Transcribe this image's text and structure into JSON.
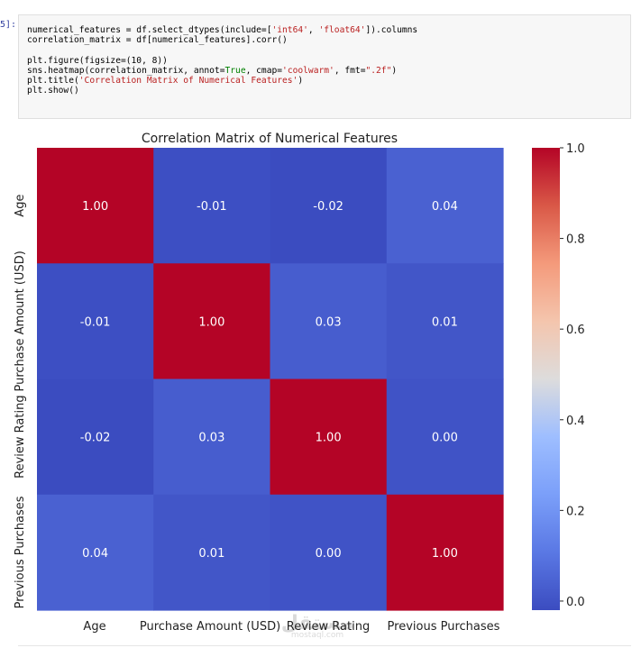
{
  "cell": {
    "prompt": "5]:",
    "code_lines": [
      [
        {
          "t": "numerical_features = df.select_dtypes(include=["
        },
        {
          "t": "'int64'",
          "c": "str"
        },
        {
          "t": ", "
        },
        {
          "t": "'float64'",
          "c": "str"
        },
        {
          "t": "]).columns"
        }
      ],
      [
        {
          "t": "correlation_matrix = df[numerical_features].corr()"
        }
      ],
      [
        {
          "t": ""
        }
      ],
      [
        {
          "t": "plt.figure(figsize=(10, 8))"
        }
      ],
      [
        {
          "t": "sns.heatmap(correlation_matrix, annot="
        },
        {
          "t": "True",
          "c": "kw"
        },
        {
          "t": ", cmap="
        },
        {
          "t": "'coolwarm'",
          "c": "str"
        },
        {
          "t": ", fmt="
        },
        {
          "t": "\".2f\"",
          "c": "str"
        },
        {
          "t": ")"
        }
      ],
      [
        {
          "t": "plt.title("
        },
        {
          "t": "'Correlation Matrix of Numerical Features'",
          "c": "str"
        },
        {
          "t": ")"
        }
      ],
      [
        {
          "t": "plt.show()"
        }
      ]
    ]
  },
  "chart_data": {
    "type": "heatmap",
    "title": "Correlation Matrix of Numerical Features",
    "row_labels": [
      "Age",
      "Purchase Amount (USD)",
      "Review Rating",
      "Previous Purchases"
    ],
    "col_labels": [
      "Age",
      "Purchase Amount (USD)",
      "Review Rating",
      "Previous Purchases"
    ],
    "values": [
      [
        1.0,
        -0.01,
        -0.02,
        0.04
      ],
      [
        -0.01,
        1.0,
        0.03,
        0.01
      ],
      [
        -0.02,
        0.03,
        1.0,
        0.0
      ],
      [
        0.04,
        0.01,
        0.0,
        1.0
      ]
    ],
    "annotations": [
      [
        "1.00",
        "-0.01",
        "-0.02",
        "0.04"
      ],
      [
        "-0.01",
        "1.00",
        "0.03",
        "0.01"
      ],
      [
        "-0.02",
        "0.03",
        "1.00",
        "0.00"
      ],
      [
        "0.04",
        "0.01",
        "0.00",
        "1.00"
      ]
    ],
    "colormap": "coolwarm",
    "vmin": -0.02,
    "vmax": 1.0,
    "colorbar_ticks": [
      {
        "value": 0.0,
        "label": "0.0"
      },
      {
        "value": 0.2,
        "label": "0.2"
      },
      {
        "value": 0.4,
        "label": "0.4"
      },
      {
        "value": 0.6,
        "label": "0.6"
      },
      {
        "value": 0.8,
        "label": "0.8"
      },
      {
        "value": 1.0,
        "label": "1.0"
      }
    ],
    "colors": {
      "low": "#3b4cc0",
      "mid": "#dddddd",
      "high": "#b40426"
    }
  },
  "watermark": {
    "text_ar": "مستقل",
    "text_en": "mostaql.com"
  }
}
